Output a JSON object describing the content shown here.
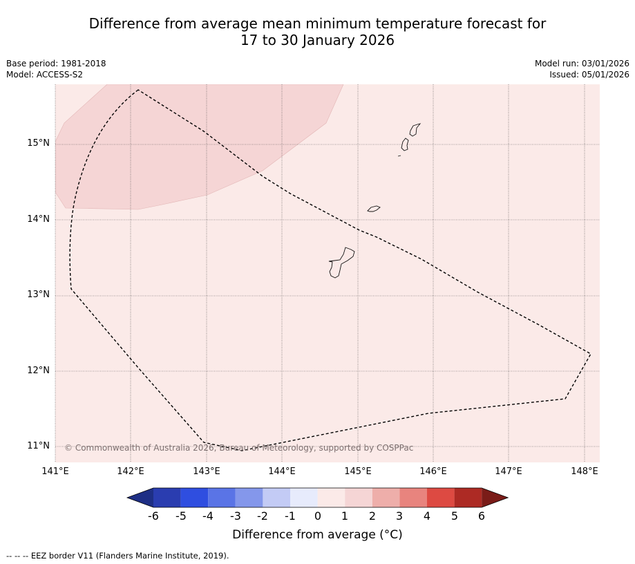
{
  "title": {
    "line1": "Difference from average mean minimum temperature forecast for",
    "line2": "17 to 30 January 2026"
  },
  "meta": {
    "base_period": "Base period: 1981-2018",
    "model": "Model: ACCESS-S2",
    "model_run": "Model run: 03/01/2026",
    "issued": "Issued: 05/01/2026"
  },
  "map": {
    "lat_labels": [
      "15°N",
      "14°N",
      "13°N",
      "12°N",
      "11°N"
    ],
    "lon_labels": [
      "141°E",
      "142°E",
      "143°E",
      "144°E",
      "145°E",
      "146°E",
      "147°E",
      "148°E"
    ],
    "lat_values": [
      15,
      14,
      13,
      12,
      11
    ],
    "lon_values": [
      141,
      142,
      143,
      144,
      145,
      146,
      147,
      148
    ],
    "extent": {
      "lon_min": 141,
      "lon_max": 148.2,
      "lat_min": 10.8,
      "lat_max": 15.8
    },
    "background_category": "0 to 1",
    "anomaly_region_category": "1 to 2",
    "copyright": "© Commonwealth of Australia 2026, Bureau of Meteorology, supported by COSPPac"
  },
  "colorbar": {
    "ticks": [
      "-6",
      "-5",
      "-4",
      "-3",
      "-2",
      "-1",
      "0",
      "1",
      "2",
      "3",
      "4",
      "5",
      "6"
    ],
    "colors": [
      "#2a3db0",
      "#2f4ee0",
      "#5a74e6",
      "#8497eb",
      "#c3cbf5",
      "#e7ebfc",
      "#fbeae8",
      "#f5d5d5",
      "#eeaeaa",
      "#e8847e",
      "#dd4a42",
      "#ad2a24"
    ],
    "under_color": "#1e2f85",
    "over_color": "#7a1c18",
    "label": "Difference from average (°C)"
  },
  "colors": {
    "background_fill": "#fbeae8",
    "anomaly_fill": "#f5d5d5"
  },
  "footer": "--  --  -- EEZ border V11 (Flanders Marine Institute, 2019)."
}
